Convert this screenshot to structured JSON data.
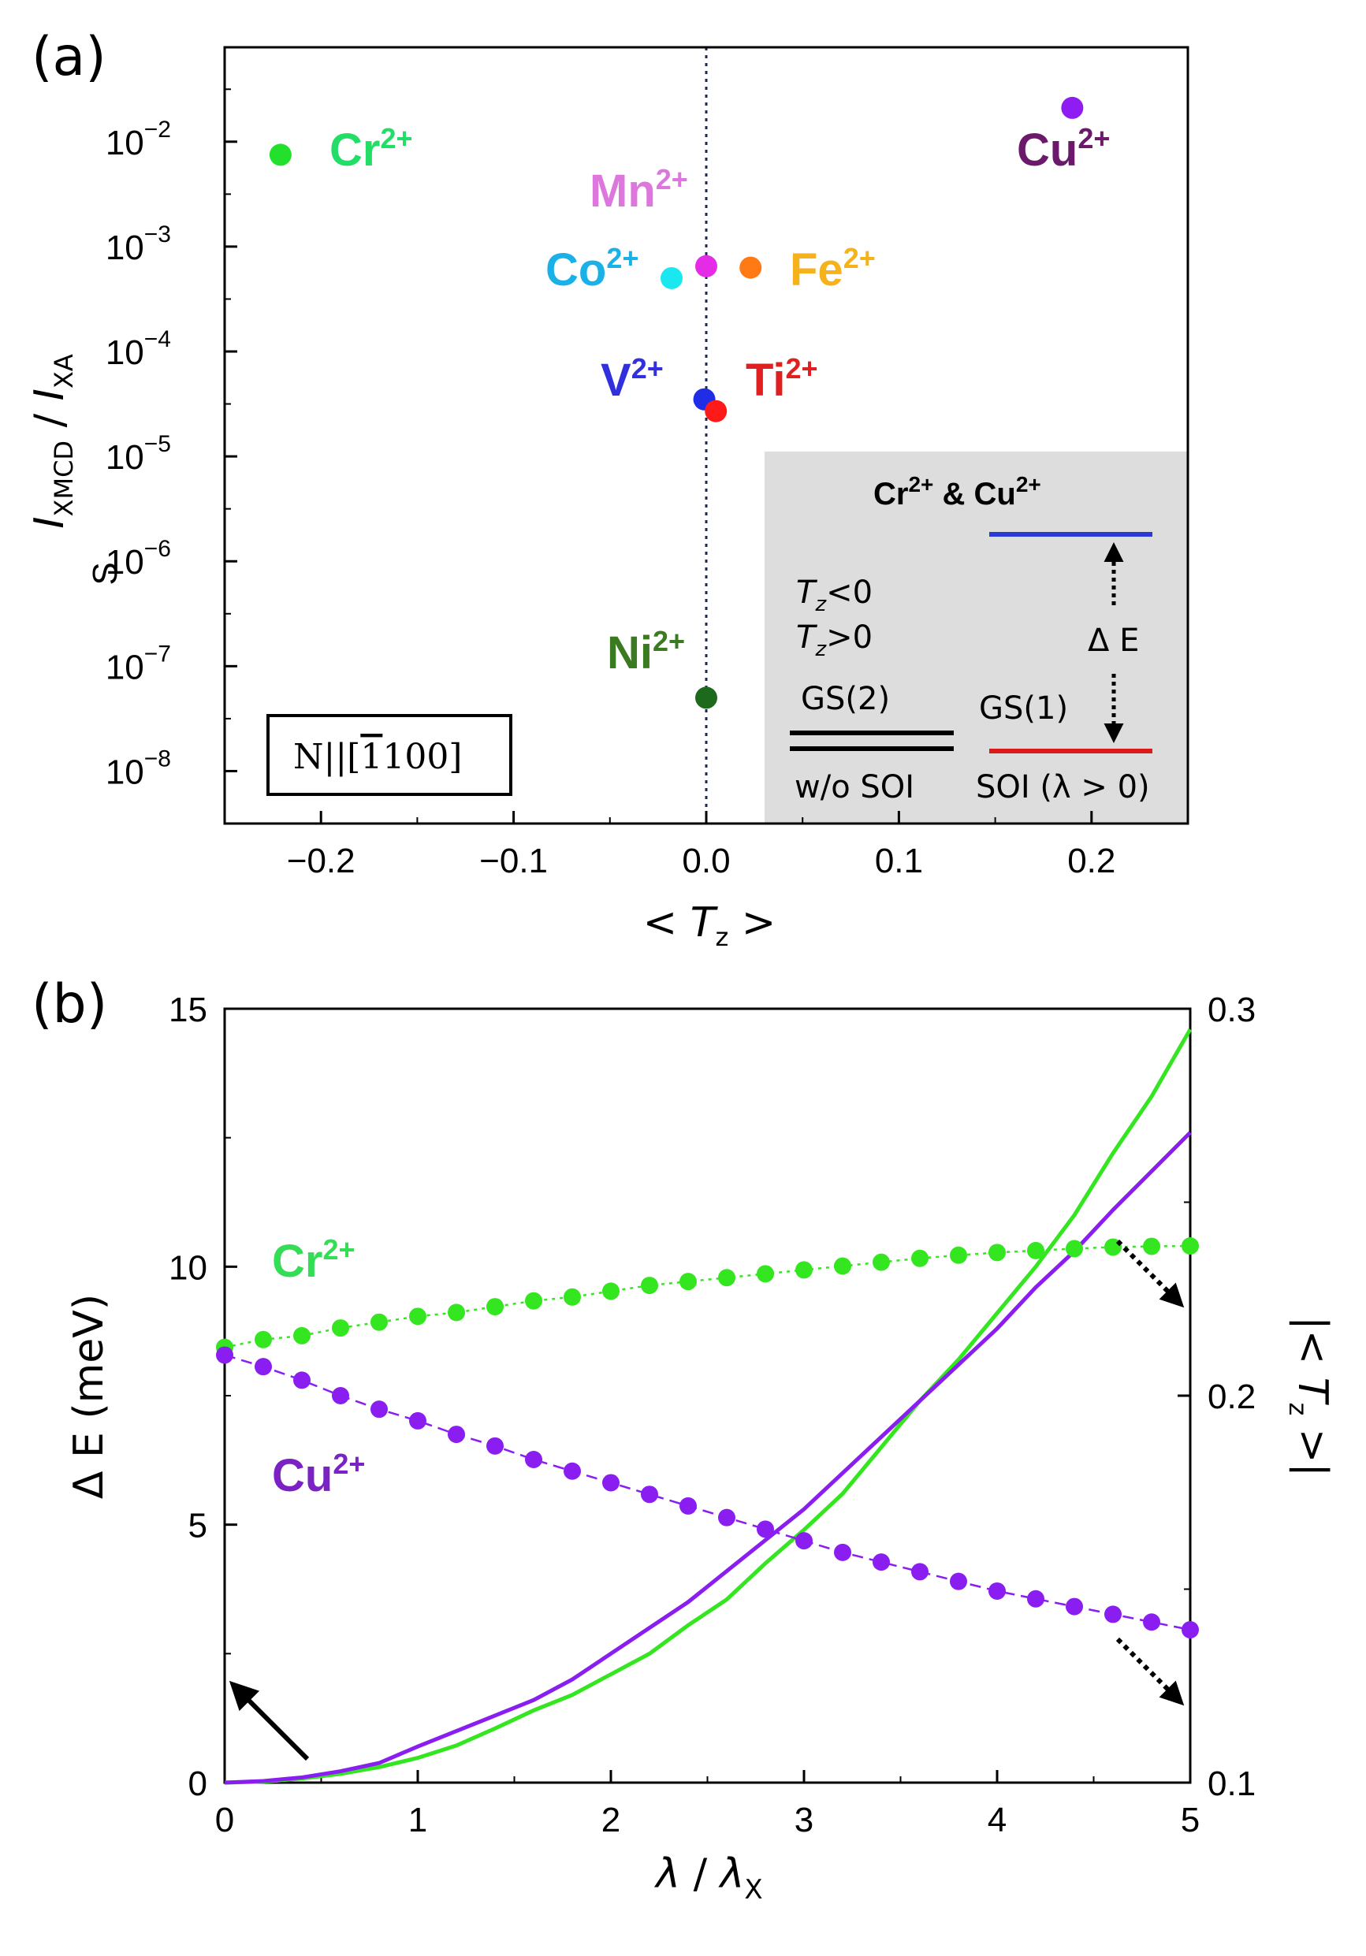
{
  "panels": {
    "a": {
      "tag": "(a)"
    },
    "b": {
      "tag": "(b)"
    }
  },
  "chart_data": [
    {
      "type": "scatter",
      "panel": "(a)",
      "xlabel_parts": {
        "pre": "< ",
        "var": "T",
        "sub": "z",
        "post": " >"
      },
      "ylabel_parts": {
        "i1": "I",
        "s1": "XMCD",
        "mid": " / ",
        "i2": "I",
        "s2": "XA"
      },
      "ylabel_small": "S",
      "y_scale": "log",
      "xlim": [
        -0.25,
        0.25
      ],
      "ylim_exp": [
        -8.5,
        -1.1
      ],
      "x_ticks": [
        -0.2,
        -0.1,
        0.0,
        0.1,
        0.2
      ],
      "x_tick_labels": [
        "−0.2",
        "−0.1",
        "0.0",
        "0.1",
        "0.2"
      ],
      "y_tick_exponents": [
        -2,
        -3,
        -4,
        -5,
        -6,
        -7,
        -8
      ],
      "y_tick_base": "10",
      "y_tick_exp_labels": [
        "−2",
        "−3",
        "−4",
        "−5",
        "−6",
        "−7",
        "−8"
      ],
      "reference_line_x": 0.0,
      "points": [
        {
          "ion": "Cr",
          "charge": "2+",
          "x": -0.221,
          "y": 0.0075,
          "color": "#22e02c"
        },
        {
          "ion": "Cu",
          "charge": "2+",
          "x": 0.19,
          "y": 0.021,
          "color": "#8f1cf2"
        },
        {
          "ion": "Mn",
          "charge": "2+",
          "x": 0.0,
          "y": 0.00065,
          "color": "#e42be6"
        },
        {
          "ion": "Co",
          "charge": "2+",
          "x": -0.018,
          "y": 0.0005,
          "color": "#1ae8f0"
        },
        {
          "ion": "Fe",
          "charge": "2+",
          "x": 0.023,
          "y": 0.00063,
          "color": "#ff7a14"
        },
        {
          "ion": "V",
          "charge": "2+",
          "x": -0.001,
          "y": 3.5e-05,
          "color": "#1f2de6"
        },
        {
          "ion": "Ti",
          "charge": "2+",
          "x": 0.005,
          "y": 2.7e-05,
          "color": "#ff1a1a"
        },
        {
          "ion": "Ni",
          "charge": "2+",
          "x": 0.0,
          "y": 5e-08,
          "color": "#1d6a1d"
        }
      ],
      "label_colors": {
        "Cr": "#22dd66",
        "Cu": "#6b1a6b",
        "Mn": "#dd77dd",
        "Co": "#1ab0e8",
        "Fe": "#f5b21a",
        "V": "#3030dd",
        "Ti": "#e02020",
        "Ni": "#3a7a20"
      },
      "box_label_parts": {
        "a": "N||[",
        "bar": "1",
        "b": "100]"
      },
      "inset": {
        "title_parts": {
          "ion1": "Cr",
          "sup1": "2+",
          "amp": " & ",
          "ion2": "Cu",
          "sup2": "2+"
        },
        "tz_neg_parts": {
          "var": "T",
          "sub": "z",
          "rel": "<0"
        },
        "tz_pos_parts": {
          "var": "T",
          "sub": "z",
          "rel": ">0"
        },
        "gs2": "GS(2)",
        "gs1": "GS(1)",
        "delta_e": "Δ E",
        "wo_soi": "w/o SOI",
        "soi": "SOI (λ > 0)",
        "upper_level_color": "#2b3ad6",
        "lower_level_color": "#dd1a1a"
      }
    },
    {
      "type": "line",
      "panel": "(b)",
      "xlabel": "λ / λ X",
      "xlabel_parts": {
        "a": "λ",
        "b": " / ",
        "c": "λ",
        "sub": "X"
      },
      "ylabel_left": "Δ E (meV)",
      "ylabel_right_parts": {
        "open": "|< ",
        "var": "T",
        "sub": "z",
        "close": " >|"
      },
      "xlim": [
        0,
        5
      ],
      "ylim_left": [
        0,
        15
      ],
      "ylim_right": [
        0.1,
        0.3
      ],
      "x_ticks": [
        0,
        1,
        2,
        3,
        4,
        5
      ],
      "y_left_ticks": [
        0,
        5,
        10,
        15
      ],
      "y_right_ticks": [
        0.1,
        0.2,
        0.3
      ],
      "y_right_tick_labels": [
        "0.1",
        "0.2",
        "0.3"
      ],
      "series_labels": {
        "cr": {
          "ion": "Cr",
          "sup": "2+",
          "color": "#33dd55"
        },
        "cu": {
          "ion": "Cu",
          "sup": "2+",
          "color": "#7a22c4"
        }
      },
      "series": [
        {
          "ion": "Cr2+",
          "axis": "left",
          "style": "solid",
          "color": "#33e61f",
          "x": [
            0,
            0.2,
            0.4,
            0.6,
            0.8,
            1.0,
            1.2,
            1.4,
            1.6,
            1.8,
            2.0,
            2.2,
            2.4,
            2.6,
            2.8,
            3.0,
            3.2,
            3.4,
            3.6,
            3.8,
            4.0,
            4.2,
            4.4,
            4.6,
            4.8,
            5.0
          ],
          "y": [
            0,
            0.02,
            0.08,
            0.17,
            0.3,
            0.48,
            0.72,
            1.05,
            1.4,
            1.7,
            2.1,
            2.5,
            3.05,
            3.55,
            4.25,
            4.9,
            5.6,
            6.5,
            7.4,
            8.2,
            9.1,
            10.0,
            11.0,
            12.2,
            13.3,
            14.6
          ]
        },
        {
          "ion": "Cu2+",
          "axis": "left",
          "style": "solid",
          "color": "#8a1ef0",
          "x": [
            0,
            0.2,
            0.4,
            0.6,
            0.8,
            1.0,
            1.2,
            1.4,
            1.6,
            1.8,
            2.0,
            2.2,
            2.4,
            2.6,
            2.8,
            3.0,
            3.2,
            3.4,
            3.6,
            3.8,
            4.0,
            4.2,
            4.4,
            4.6,
            4.8,
            5.0
          ],
          "y": [
            0,
            0.03,
            0.1,
            0.22,
            0.38,
            0.7,
            1.0,
            1.3,
            1.6,
            2.0,
            2.5,
            3.0,
            3.5,
            4.1,
            4.7,
            5.3,
            6.0,
            6.7,
            7.4,
            8.1,
            8.8,
            9.6,
            10.3,
            11.1,
            11.85,
            12.6
          ]
        },
        {
          "ion": "Cr2+",
          "axis": "right",
          "style": "dotted-markers",
          "color": "#33e61f",
          "x": [
            0,
            0.2,
            0.4,
            0.6,
            0.8,
            1.0,
            1.2,
            1.4,
            1.6,
            1.8,
            2.0,
            2.2,
            2.4,
            2.6,
            2.8,
            3.0,
            3.2,
            3.4,
            3.6,
            3.8,
            4.0,
            4.2,
            4.4,
            4.6,
            4.8,
            5.0
          ],
          "y": [
            0.2125,
            0.2145,
            0.2155,
            0.2175,
            0.219,
            0.2205,
            0.2215,
            0.223,
            0.2245,
            0.2255,
            0.227,
            0.2285,
            0.2295,
            0.2305,
            0.2315,
            0.2325,
            0.2335,
            0.2345,
            0.2355,
            0.2363,
            0.237,
            0.2375,
            0.238,
            0.2384,
            0.2386,
            0.2387
          ]
        },
        {
          "ion": "Cu2+",
          "axis": "right",
          "style": "dashed-markers",
          "color": "#8a1ef0",
          "x": [
            0,
            0.2,
            0.4,
            0.6,
            0.8,
            1.0,
            1.2,
            1.4,
            1.6,
            1.8,
            2.0,
            2.2,
            2.4,
            2.6,
            2.8,
            3.0,
            3.2,
            3.4,
            3.6,
            3.8,
            4.0,
            4.2,
            4.4,
            4.6,
            4.8,
            5.0
          ],
          "y": [
            0.2105,
            0.2075,
            0.204,
            0.2,
            0.1965,
            0.1935,
            0.19,
            0.187,
            0.1835,
            0.1805,
            0.1775,
            0.1745,
            0.1715,
            0.1685,
            0.1655,
            0.1625,
            0.1595,
            0.157,
            0.1545,
            0.152,
            0.1495,
            0.1475,
            0.1455,
            0.1435,
            0.1415,
            0.1395
          ]
        }
      ],
      "annotations": [
        {
          "type": "arrow",
          "style": "solid",
          "meaning": "solid curves read on left axis"
        },
        {
          "type": "arrow",
          "style": "dotted",
          "meaning": "Cr2+ markers read on right axis"
        },
        {
          "type": "arrow",
          "style": "dotted",
          "meaning": "Cu2+ markers read on right axis"
        }
      ]
    }
  ]
}
